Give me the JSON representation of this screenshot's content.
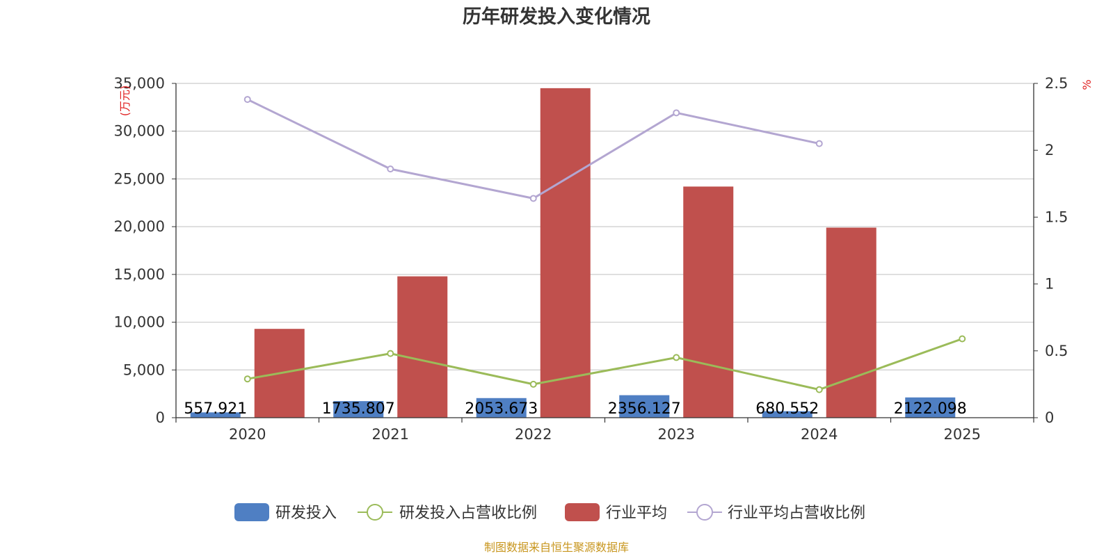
{
  "chart_data": {
    "type": "bar",
    "title": "历年研发投入变化情况",
    "categories": [
      "2020",
      "2021",
      "2022",
      "2023",
      "2024",
      "2025"
    ],
    "y_left": {
      "unit": "(万元)",
      "ylim": [
        0,
        35000
      ],
      "ticks": [
        "0",
        "5,000",
        "10,000",
        "15,000",
        "20,000",
        "25,000",
        "30,000",
        "35,000"
      ]
    },
    "y_right": {
      "unit": "%",
      "ylim": [
        0,
        2.5
      ],
      "ticks": [
        "0",
        "0.5",
        "1",
        "1.5",
        "2",
        "2.5"
      ]
    },
    "grid": true,
    "legend_position": "bottom",
    "series": [
      {
        "name": "研发投入",
        "type": "bar",
        "axis": "left",
        "color": "#4f7fc3",
        "values": [
          557.921,
          1735.807,
          2053.673,
          2356.127,
          680.552,
          2122.098
        ],
        "labels": [
          "557.921",
          "1735.807",
          "2053.673",
          "2356.127",
          "680.552",
          "2122.098"
        ]
      },
      {
        "name": "研发投入占营收比例",
        "type": "line",
        "axis": "right",
        "color": "#9bbb59",
        "values": [
          0.29,
          0.48,
          0.25,
          0.45,
          0.21,
          0.59
        ]
      },
      {
        "name": "行业平均",
        "type": "bar",
        "axis": "left",
        "color": "#c0504d",
        "values": [
          9300,
          14800,
          34500,
          24200,
          19900,
          null
        ]
      },
      {
        "name": "行业平均占营收比例",
        "type": "line",
        "axis": "right",
        "color": "#b3a6d1",
        "values": [
          2.38,
          1.86,
          1.64,
          2.28,
          2.05,
          null
        ]
      }
    ]
  },
  "footer": {
    "source": "制图数据来自恒生聚源数据库"
  }
}
